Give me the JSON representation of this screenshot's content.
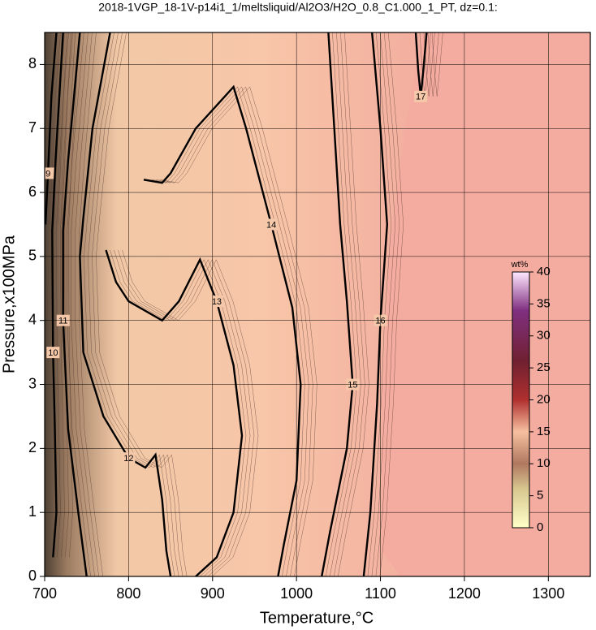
{
  "chart_data": {
    "type": "contour",
    "title": "2018-1VGP_18-1V-p14i1_1/meltsliquid/Al2O3/H2O_0.8_C1.000_1_PT, dz=0.1:",
    "xlabel": "Temperature,°C",
    "ylabel": "Pressure,x100MPa",
    "xlim": [
      700,
      1350
    ],
    "ylim": [
      0,
      8.5
    ],
    "xticks": [
      700,
      800,
      900,
      1000,
      1100,
      1200,
      1300
    ],
    "yticks": [
      0,
      1,
      2,
      3,
      4,
      5,
      6,
      7,
      8
    ],
    "grid": true,
    "contours": [
      {
        "level": 9,
        "points": [
          [
            714,
            8.5
          ],
          [
            708,
            7.5
          ],
          [
            704,
            6.3
          ],
          [
            701,
            5.5
          ]
        ]
      },
      {
        "level": 10,
        "points": [
          [
            722,
            8.5
          ],
          [
            713,
            6.5
          ],
          [
            709,
            5.4
          ],
          [
            710,
            3.5
          ],
          [
            712,
            2.4
          ],
          [
            714,
            1
          ],
          [
            710,
            0.3
          ]
        ]
      },
      {
        "level": 11,
        "points": [
          [
            742,
            8.5
          ],
          [
            728,
            6.5
          ],
          [
            722,
            5.4
          ],
          [
            722,
            4
          ],
          [
            728,
            2.3
          ],
          [
            740,
            1
          ],
          [
            750,
            0
          ]
        ]
      },
      {
        "level": 12,
        "points": [
          [
            778,
            8.5
          ],
          [
            757,
            7
          ],
          [
            746,
            5.6
          ],
          [
            742,
            5
          ],
          [
            746,
            3.5
          ],
          [
            770,
            2.5
          ],
          [
            800,
            1.85
          ],
          [
            820,
            1.7
          ],
          [
            832,
            1.9
          ],
          [
            840,
            1.2
          ],
          [
            845,
            0.4
          ],
          [
            850,
            0
          ]
        ]
      },
      {
        "level": 13,
        "points": [
          [
            773,
            5.1
          ],
          [
            785,
            4.6
          ],
          [
            800,
            4.3
          ],
          [
            840,
            4.0
          ],
          [
            860,
            4.3
          ],
          [
            885,
            4.95
          ],
          [
            905,
            4.3
          ],
          [
            925,
            3.3
          ],
          [
            935,
            2.2
          ],
          [
            925,
            1
          ],
          [
            905,
            0.3
          ],
          [
            880,
            0
          ]
        ]
      },
      {
        "level": 14,
        "points": [
          [
            818,
            6.2
          ],
          [
            840,
            6.15
          ],
          [
            850,
            6.3
          ],
          [
            880,
            7
          ],
          [
            925,
            7.65
          ],
          [
            940,
            7
          ],
          [
            970,
            5.5
          ],
          [
            995,
            4.2
          ],
          [
            1005,
            3
          ],
          [
            1000,
            1.5
          ],
          [
            985,
            0.5
          ],
          [
            978,
            0
          ]
        ]
      },
      {
        "level": 15,
        "points": [
          [
            1038,
            8.5
          ],
          [
            1045,
            7
          ],
          [
            1052,
            5.5
          ],
          [
            1060,
            4.3
          ],
          [
            1067,
            3
          ],
          [
            1060,
            2
          ],
          [
            1040,
            0.7
          ],
          [
            1030,
            0
          ]
        ]
      },
      {
        "level": 16,
        "points": [
          [
            1090,
            8.5
          ],
          [
            1100,
            7
          ],
          [
            1108,
            5.5
          ],
          [
            1100,
            4
          ],
          [
            1096,
            2.7
          ],
          [
            1088,
            1
          ],
          [
            1080,
            0
          ]
        ]
      },
      {
        "level": 17,
        "points": [
          [
            1142,
            8.5
          ],
          [
            1145,
            7.9
          ],
          [
            1148,
            7.5
          ],
          [
            1151,
            7.9
          ],
          [
            1155,
            8.5
          ]
        ]
      }
    ],
    "colorbar": {
      "label": "wt%",
      "lim": [
        0,
        40
      ],
      "ticks": [
        0,
        5,
        10,
        15,
        20,
        25,
        30,
        35,
        40
      ]
    }
  }
}
